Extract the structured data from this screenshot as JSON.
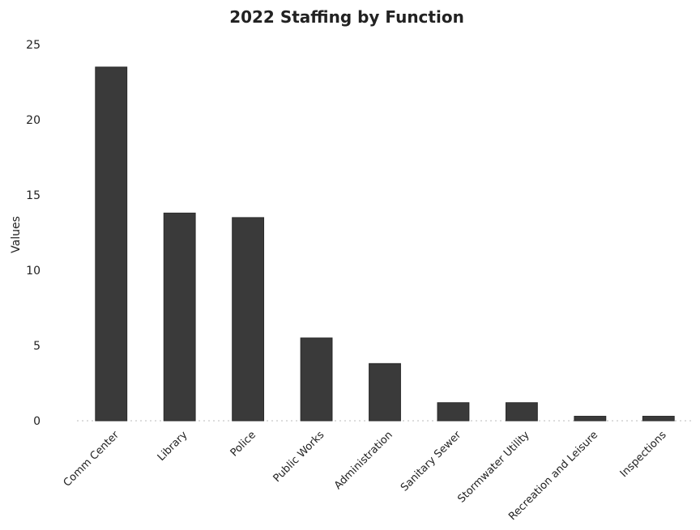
{
  "chart_data": {
    "type": "bar",
    "title": "2022 Staffing by Function",
    "xlabel": "",
    "ylabel": "Values",
    "ylim": [
      0,
      25
    ],
    "yticks": [
      0,
      5,
      10,
      15,
      20,
      25
    ],
    "grid": false,
    "categories": [
      "Comm Center",
      "Library",
      "Police",
      "Public Works",
      "Administration",
      "Sanitary Sewer",
      "Stormwater Utility",
      "Recreation and Leisure",
      "Inspections"
    ],
    "values": [
      23.5,
      13.8,
      13.5,
      5.5,
      3.8,
      1.2,
      1.2,
      0.3,
      0.3
    ],
    "colors": {
      "bar": "#3a3a3a"
    }
  }
}
